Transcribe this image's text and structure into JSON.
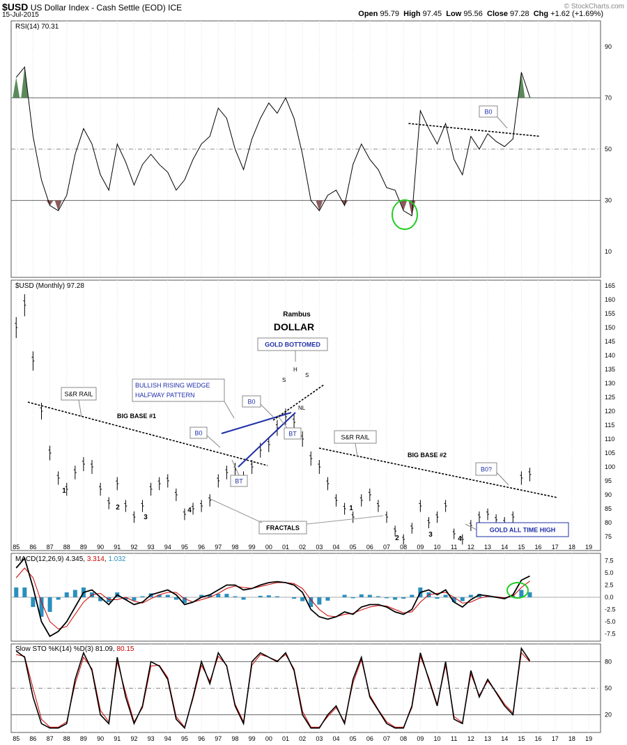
{
  "header": {
    "symbol": "$USD",
    "name": "US Dollar Index - Cash Settle (EOD)",
    "exchange": "ICE",
    "date": "15-Jul-2015",
    "watermark": "© StockCharts.com",
    "open_label": "Open",
    "open": "95.79",
    "high_label": "High",
    "high": "97.45",
    "low_label": "Low",
    "low": "95.56",
    "close_label": "Close",
    "close": "97.28",
    "chg_label": "Chg",
    "chg": "+1.62 (+1.69%)"
  },
  "chart_data": [
    {
      "type": "line",
      "panel": "rsi",
      "title_main": "RSI(14)",
      "title_value": "70.31",
      "ylim": [
        0,
        100
      ],
      "yticks": [
        10,
        30,
        50,
        70,
        90
      ],
      "reference_lines": [
        30,
        50,
        70
      ],
      "x": [
        1985,
        1985.5,
        1986,
        1986.5,
        1987,
        1987.5,
        1988,
        1988.5,
        1989,
        1989.5,
        1990,
        1990.5,
        1991,
        1991.5,
        1992,
        1992.5,
        1993,
        1993.5,
        1994,
        1994.5,
        1995,
        1995.5,
        1996,
        1996.5,
        1997,
        1997.5,
        1998,
        1998.5,
        1999,
        1999.5,
        2000,
        2000.5,
        2001,
        2001.5,
        2002,
        2002.5,
        2003,
        2003.5,
        2004,
        2004.5,
        2005,
        2005.5,
        2006,
        2006.5,
        2007,
        2007.5,
        2008,
        2008.5,
        2009,
        2009.5,
        2010,
        2010.5,
        2011,
        2011.5,
        2012,
        2012.5,
        2013,
        2013.5,
        2014,
        2014.5,
        2015,
        2015.5
      ],
      "values": [
        78,
        82,
        55,
        38,
        28,
        26,
        32,
        48,
        58,
        52,
        40,
        34,
        52,
        45,
        36,
        44,
        48,
        44,
        41,
        34,
        38,
        46,
        52,
        55,
        66,
        62,
        50,
        42,
        54,
        62,
        68,
        64,
        70,
        62,
        48,
        30,
        26,
        32,
        34,
        28,
        44,
        52,
        46,
        42,
        35,
        34,
        26,
        24,
        65,
        58,
        52,
        60,
        46,
        40,
        55,
        50,
        56,
        53,
        51,
        54,
        80,
        70.3
      ],
      "annotations": [
        "B0"
      ]
    },
    {
      "type": "ohlc",
      "panel": "price",
      "title_main": "$USD (Monthly)",
      "title_value": "97.28",
      "ylim": [
        70,
        167
      ],
      "yticks": [
        75,
        80,
        85,
        90,
        95,
        100,
        105,
        110,
        115,
        120,
        125,
        130,
        135,
        140,
        145,
        150,
        155,
        160,
        165
      ],
      "x": [
        1985,
        1985.5,
        1986,
        1986.5,
        1987,
        1987.5,
        1988,
        1988.5,
        1989,
        1989.5,
        1990,
        1990.5,
        1991,
        1991.5,
        1992,
        1992.5,
        1993,
        1993.5,
        1994,
        1994.5,
        1995,
        1995.5,
        1996,
        1996.5,
        1997,
        1997.5,
        1998,
        1998.5,
        1999,
        1999.5,
        2000,
        2000.5,
        2001,
        2001.5,
        2002,
        2002.5,
        2003,
        2003.5,
        2004,
        2004.5,
        2005,
        2005.5,
        2006,
        2006.5,
        2007,
        2007.5,
        2008,
        2008.5,
        2009,
        2009.5,
        2010,
        2010.5,
        2011,
        2011.5,
        2012,
        2012.5,
        2013,
        2013.5,
        2014,
        2014.5,
        2015,
        2015.5
      ],
      "values": [
        150,
        158,
        138,
        120,
        105,
        96,
        92,
        98,
        101,
        100,
        92,
        87,
        94,
        86,
        82,
        86,
        92,
        94,
        95,
        90,
        83,
        85,
        86,
        88,
        95,
        98,
        99,
        96,
        100,
        106,
        108,
        114,
        118,
        116,
        110,
        103,
        100,
        94,
        88,
        85,
        82,
        88,
        90,
        86,
        82,
        77,
        74,
        78,
        86,
        80,
        82,
        86,
        76,
        74,
        79,
        82,
        83,
        81,
        80,
        82,
        96,
        97.28
      ],
      "texts": {
        "author": "Rambus",
        "title": "DOLLAR",
        "gold_bottomed": "GOLD BOTTOMED",
        "wedge_1": "BULLISH RISING WEDGE",
        "wedge_2": "HALFWAY PATTERN",
        "sr_rail_1": "S&R RAIL",
        "sr_rail_2": "S&R RAIL",
        "big_base_1": "BIG BASE #1",
        "big_base_2": "BIG BASE #2",
        "b0_1": "B0",
        "b0_2": "B0",
        "b0_q": "B0?",
        "bt_1": "BT",
        "bt_2": "BT",
        "h": "H",
        "s_left": "S",
        "s_right": "S",
        "nl": "NL",
        "fractals": "FRACTALS",
        "gold_ath": "GOLD ALL TIME HIGH",
        "n1a": "1",
        "n2a": "2",
        "n3a": "3",
        "n4a": "4",
        "n1b": "1",
        "n2b": "2",
        "n3b": "3",
        "n4b": "4"
      },
      "x_tick_labels": [
        "85",
        "86",
        "87",
        "88",
        "89",
        "90",
        "91",
        "92",
        "93",
        "94",
        "95",
        "96",
        "97",
        "98",
        "99",
        "00",
        "01",
        "02",
        "03",
        "04",
        "05",
        "06",
        "07",
        "08",
        "09",
        "10",
        "11",
        "12",
        "13",
        "14",
        "15",
        "16",
        "17",
        "18",
        "19"
      ]
    },
    {
      "type": "line",
      "panel": "macd",
      "title_main": "MACD(12,26,9)",
      "title_v1": "4.345",
      "title_v2": "3.314",
      "title_v3": "1.032",
      "ylim": [
        -9,
        9
      ],
      "yticks": [
        -7.5,
        -5.0,
        -2.5,
        0.0,
        2.5,
        5.0,
        7.5
      ],
      "ytick_labels": [
        "-7.5",
        "-5.0",
        "-2.5",
        "0.0",
        "2.5",
        "5.0",
        "7.5"
      ],
      "x": [
        1985,
        1985.5,
        1986,
        1986.5,
        1987,
        1987.5,
        1988,
        1988.5,
        1989,
        1989.5,
        1990,
        1990.5,
        1991,
        1991.5,
        1992,
        1992.5,
        1993,
        1993.5,
        1994,
        1994.5,
        1995,
        1995.5,
        1996,
        1996.5,
        1997,
        1997.5,
        1998,
        1998.5,
        1999,
        1999.5,
        2000,
        2000.5,
        2001,
        2001.5,
        2002,
        2002.5,
        2003,
        2003.5,
        2004,
        2004.5,
        2005,
        2005.5,
        2006,
        2006.5,
        2007,
        2007.5,
        2008,
        2008.5,
        2009,
        2009.5,
        2010,
        2010.5,
        2011,
        2011.5,
        2012,
        2012.5,
        2013,
        2013.5,
        2014,
        2014.5,
        2015,
        2015.5
      ],
      "series": [
        {
          "name": "MACD",
          "color": "#000000",
          "values": [
            6,
            8,
            2,
            -5,
            -8,
            -7,
            -5,
            -2,
            1,
            1.5,
            0,
            -1.5,
            0.5,
            -0.5,
            -1.5,
            -1,
            0.5,
            1,
            1.5,
            0.5,
            -1.5,
            -1,
            0,
            0.5,
            1.5,
            2.5,
            2.5,
            1.5,
            1.8,
            2.5,
            3,
            3.2,
            3,
            2.5,
            1,
            -2.5,
            -4,
            -4.5,
            -4,
            -3,
            -3.5,
            -2,
            -1.5,
            -1.5,
            -2,
            -3,
            -3.5,
            -2.5,
            1,
            1.5,
            0.5,
            1.5,
            -1,
            -2,
            -0.5,
            0.5,
            0.3,
            0,
            -0.3,
            0.5,
            3.5,
            4.35
          ]
        },
        {
          "name": "Signal",
          "color": "#cc0000",
          "values": [
            4,
            6,
            4,
            -1,
            -5,
            -6.5,
            -6,
            -3.5,
            -1,
            0.5,
            0.8,
            -0.5,
            -0.5,
            0,
            -0.8,
            -1.2,
            -0.3,
            0.5,
            1,
            1,
            -0.3,
            -1,
            -0.5,
            0,
            0.8,
            1.8,
            2.3,
            2,
            1.8,
            2.2,
            2.6,
            3,
            3,
            2.8,
            1.8,
            -0.5,
            -2.5,
            -3.8,
            -4,
            -3.5,
            -3.3,
            -2.6,
            -2,
            -1.7,
            -1.8,
            -2.5,
            -3.2,
            -3,
            -1,
            0.5,
            0.8,
            1,
            0,
            -1.2,
            -1,
            -0.2,
            0.2,
            0.1,
            -0.1,
            0.2,
            2,
            3.31
          ]
        },
        {
          "name": "Histogram",
          "color": "#2a8fbd",
          "values": [
            2,
            2,
            -2,
            -4,
            -3,
            -0.5,
            1,
            1.5,
            2,
            1,
            -0.8,
            -1,
            1,
            -0.5,
            -0.7,
            0.2,
            0.8,
            0.5,
            0.5,
            -0.5,
            -1.2,
            0,
            0.5,
            0.5,
            0.7,
            0.7,
            0.2,
            -0.5,
            0,
            0.3,
            0.4,
            0.2,
            0,
            -0.3,
            -0.8,
            -2,
            -1.5,
            -0.7,
            0,
            0.5,
            -0.2,
            0.6,
            0.5,
            0.2,
            -0.2,
            -0.5,
            -0.3,
            0.5,
            2,
            1,
            -0.3,
            0.5,
            -1,
            -0.8,
            0.5,
            0.7,
            0.1,
            -0.1,
            -0.2,
            0.3,
            1.5,
            1.03
          ]
        }
      ]
    },
    {
      "type": "line",
      "panel": "stochastic",
      "title_main": "Slow STO %K(14) %D(3)",
      "title_v1": "81.09",
      "title_v2": "80.15",
      "ylim": [
        0,
        100
      ],
      "yticks": [
        20,
        50,
        80
      ],
      "x": [
        1985,
        1985.5,
        1986,
        1986.5,
        1987,
        1987.5,
        1988,
        1988.5,
        1989,
        1989.5,
        1990,
        1990.5,
        1991,
        1991.5,
        1992,
        1992.5,
        1993,
        1993.5,
        1994,
        1994.5,
        1995,
        1995.5,
        1996,
        1996.5,
        1997,
        1997.5,
        1998,
        1998.5,
        1999,
        1999.5,
        2000,
        2000.5,
        2001,
        2001.5,
        2002,
        2002.5,
        2003,
        2003.5,
        2004,
        2004.5,
        2005,
        2005.5,
        2006,
        2006.5,
        2007,
        2007.5,
        2008,
        2008.5,
        2009,
        2009.5,
        2010,
        2010.5,
        2011,
        2011.5,
        2012,
        2012.5,
        2013,
        2013.5,
        2014,
        2014.5,
        2015,
        2015.5
      ],
      "series": [
        {
          "name": "%K",
          "color": "#000000",
          "values": [
            92,
            85,
            40,
            10,
            5,
            5,
            10,
            60,
            90,
            70,
            20,
            10,
            85,
            40,
            10,
            30,
            80,
            75,
            60,
            15,
            5,
            40,
            80,
            55,
            90,
            75,
            30,
            10,
            80,
            90,
            85,
            80,
            90,
            70,
            20,
            5,
            5,
            20,
            30,
            10,
            60,
            85,
            40,
            25,
            10,
            5,
            5,
            30,
            90,
            60,
            30,
            80,
            15,
            10,
            70,
            40,
            60,
            45,
            30,
            20,
            95,
            81
          ]
        },
        {
          "name": "%D",
          "color": "#cc0000",
          "values": [
            88,
            86,
            50,
            15,
            6,
            6,
            12,
            55,
            85,
            72,
            25,
            12,
            80,
            45,
            12,
            28,
            75,
            76,
            62,
            18,
            6,
            38,
            76,
            58,
            86,
            76,
            32,
            12,
            76,
            88,
            85,
            81,
            88,
            72,
            24,
            6,
            6,
            18,
            28,
            12,
            56,
            82,
            42,
            26,
            12,
            6,
            6,
            28,
            86,
            62,
            32,
            76,
            18,
            11,
            66,
            42,
            58,
            46,
            32,
            22,
            90,
            80
          ]
        }
      ]
    }
  ],
  "colors": {
    "panel_border": "#555555",
    "grid": "#bbbbbb",
    "rsi_over": "#5a8a5a",
    "rsi_under": "#8a5a5a",
    "annotation_blue": "#1f2fa8",
    "highlight_green": "#22cc22",
    "hist": "#2a8fbd"
  }
}
